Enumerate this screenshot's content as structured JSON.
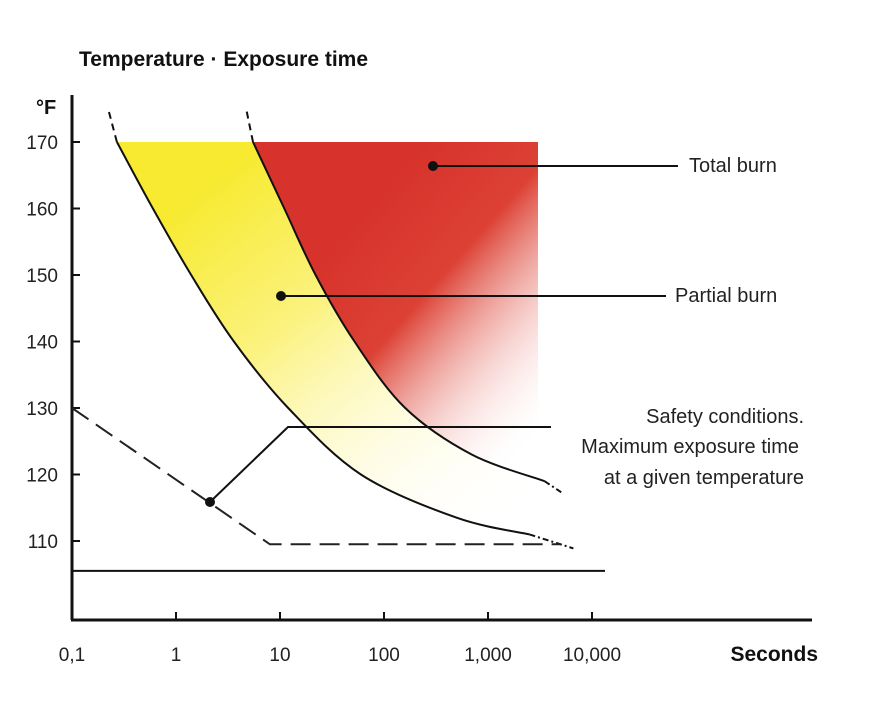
{
  "chart_data": {
    "type": "line",
    "title": "Temperature · Exposure time",
    "ylabel": "°F",
    "xlabel": "Seconds",
    "x_scale": "log",
    "xlim": [
      0.1,
      40000
    ],
    "ylim": [
      102,
      173
    ],
    "x_ticks": [
      {
        "value": 0.1,
        "label": "0,1"
      },
      {
        "value": 1,
        "label": "1"
      },
      {
        "value": 10,
        "label": "10"
      },
      {
        "value": 100,
        "label": "100"
      },
      {
        "value": 1000,
        "label": "1,000"
      },
      {
        "value": 10000,
        "label": "10,000"
      }
    ],
    "y_ticks": [
      {
        "value": 110,
        "label": "110"
      },
      {
        "value": 120,
        "label": "120"
      },
      {
        "value": 130,
        "label": "130"
      },
      {
        "value": 140,
        "label": "140"
      },
      {
        "value": 150,
        "label": "150"
      },
      {
        "value": 160,
        "label": "160"
      },
      {
        "value": 170,
        "label": "170"
      }
    ],
    "curves": [
      {
        "region": "partial",
        "points": [
          [
            0.27,
            170
          ],
          [
            0.6,
            160
          ],
          [
            1.4,
            150
          ],
          [
            3.6,
            140
          ],
          [
            12,
            130
          ],
          [
            60,
            120
          ],
          [
            500,
            113.5
          ],
          [
            2500,
            111
          ]
        ]
      },
      {
        "region": "total",
        "points": [
          [
            5.5,
            170
          ],
          [
            11,
            160
          ],
          [
            22,
            150
          ],
          [
            52,
            140
          ],
          [
            160,
            130
          ],
          [
            700,
            123
          ],
          [
            3500,
            119
          ]
        ]
      }
    ],
    "safety_line": {
      "points": [
        [
          0.1,
          130
        ],
        [
          8,
          109.5
        ],
        [
          5000,
          109.5
        ]
      ]
    },
    "baseline_y": 105.5,
    "annotations": {
      "total_burn": "Total burn",
      "partial_burn": "Partial burn",
      "safety": [
        "Safety conditions.",
        "Maximum exposure time",
        "at a given temperature"
      ]
    },
    "colors": {
      "total_burn": "#d7332c",
      "partial_burn": "#f7ec3f",
      "lines": "#111111"
    }
  }
}
